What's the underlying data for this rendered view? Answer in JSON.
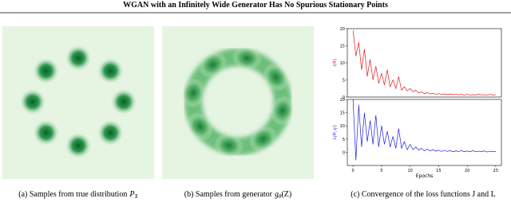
{
  "header": {
    "title": "WGAN with an Infinitely Wide Generator Has No Spurious Stationary Points"
  },
  "captions": [
    {
      "text": "(a) Samples from true distribution",
      "symbol": "P",
      "subscript": "X"
    },
    {
      "text": "(b) Samples from generator",
      "symbol": "g",
      "subscript": "θ",
      "suffix": "(Z)"
    },
    {
      "text": "(c) Convergence of the loss functions J and L"
    }
  ],
  "chart_data": [
    {
      "type": "line",
      "ylabel": "J(θᵗ)",
      "xlim": [
        -1,
        26
      ],
      "ylim": [
        0,
        20
      ],
      "yticks": [
        0,
        5,
        10,
        15,
        20
      ],
      "x": [
        0,
        0.5,
        1,
        1.5,
        2,
        2.5,
        3,
        3.5,
        4,
        4.5,
        5,
        5.5,
        6,
        6.5,
        7,
        7.5,
        8,
        8.5,
        9,
        9.5,
        10,
        10.5,
        11,
        11.5,
        12,
        12.5,
        13,
        13.5,
        14,
        14.5,
        15,
        15.5,
        16,
        16.5,
        17,
        17.5,
        18,
        18.5,
        19,
        19.5,
        20,
        20.5,
        21,
        21.5,
        22,
        22.5,
        23,
        23.5,
        24,
        24.5,
        25
      ],
      "series": [
        {
          "color": "#e31a1c",
          "values": [
            19.5,
            12,
            16,
            8,
            14,
            6,
            11,
            5,
            9,
            4,
            7,
            3.5,
            8,
            3,
            5,
            2.5,
            6,
            2,
            3,
            1.8,
            2.5,
            1.5,
            2,
            1.2,
            1.5,
            1,
            1.3,
            0.9,
            1.1,
            0.8,
            1,
            0.8,
            0.9,
            0.7,
            0.9,
            0.7,
            0.8,
            0.7,
            0.8,
            0.6,
            0.8,
            0.6,
            0.7,
            0.6,
            0.9,
            0.6,
            0.7,
            0.6,
            0.8,
            0.6,
            0.7
          ]
        }
      ]
    },
    {
      "type": "line",
      "ylabel": "L(θᵗ, ηᵗ)",
      "xlabel": "Epochs",
      "xlim": [
        -1,
        26
      ],
      "ylim": [
        -5,
        20
      ],
      "yticks": [
        0,
        5,
        10,
        15,
        20
      ],
      "xticks": [
        0,
        5,
        10,
        15,
        20,
        25
      ],
      "x": [
        0,
        0.5,
        1,
        1.5,
        2,
        2.5,
        3,
        3.5,
        4,
        4.5,
        5,
        5.5,
        6,
        6.5,
        7,
        7.5,
        8,
        8.5,
        9,
        9.5,
        10,
        10.5,
        11,
        11.5,
        12,
        12.5,
        13,
        13.5,
        14,
        14.5,
        15,
        15.5,
        16,
        16.5,
        17,
        17.5,
        18,
        18.5,
        19,
        19.5,
        20,
        20.5,
        21,
        21.5,
        22,
        22.5,
        23,
        23.5,
        24,
        24.5,
        25
      ],
      "series": [
        {
          "color": "#1f1fe0",
          "values": [
            20,
            -3,
            18,
            2,
            15,
            4,
            12,
            3,
            14,
            2,
            10,
            3,
            8,
            2,
            6,
            1.5,
            9,
            1.5,
            4,
            1,
            3,
            1,
            2,
            0.8,
            1.5,
            0.5,
            1.2,
            0.5,
            1,
            0.4,
            0.8,
            0.3,
            0.7,
            0.3,
            0.6,
            0.2,
            0.5,
            0.3,
            0.6,
            0.2,
            0.5,
            0.2,
            0.6,
            0.2,
            0.4,
            0.2,
            0.5,
            0.1,
            0.4,
            0.2,
            0.3
          ]
        }
      ]
    }
  ]
}
